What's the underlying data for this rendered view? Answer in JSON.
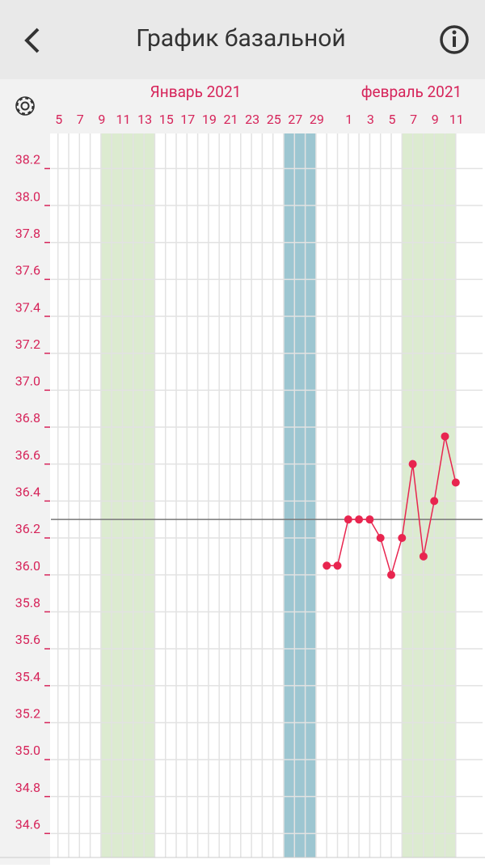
{
  "header": {
    "title": "График базальной"
  },
  "chart_data": {
    "type": "line",
    "months": [
      "Январь 2021",
      "февраль 2021"
    ],
    "categories": [
      "5",
      null,
      "7",
      null,
      "9",
      null,
      "11",
      null,
      "13",
      null,
      "15",
      null,
      "17",
      null,
      "19",
      null,
      "21",
      null,
      "23",
      null,
      "25",
      null,
      "27",
      null,
      "29",
      null,
      null,
      "1",
      null,
      "3",
      null,
      "5",
      null,
      "7",
      null,
      "9",
      null,
      "11"
    ],
    "series": [
      {
        "color": "#e8254f",
        "values": [
          null,
          null,
          null,
          null,
          null,
          null,
          null,
          null,
          null,
          null,
          null,
          null,
          null,
          null,
          null,
          null,
          null,
          null,
          null,
          null,
          null,
          null,
          null,
          null,
          null,
          36.05,
          36.05,
          36.3,
          36.3,
          36.3,
          36.2,
          36.0,
          36.2,
          36.6,
          36.1,
          36.4,
          36.75,
          36.5
        ]
      }
    ],
    "coverline": 36.3,
    "bands": [
      {
        "from": 4,
        "to": 8,
        "color": "#dcebd0"
      },
      {
        "from": 21,
        "to": 23,
        "color": "#9dc6d1"
      },
      {
        "from": 32,
        "to": 36,
        "color": "#dcebd0"
      }
    ],
    "ylim": [
      34.47,
      38.39
    ],
    "yticks": [
      38.2,
      {
        "value": 38,
        "label": "38.0"
      },
      37.8,
      37.6,
      37.4,
      37.2,
      {
        "value": 37,
        "label": "37.0"
      },
      36.8,
      36.6,
      36.4,
      36.2,
      {
        "value": 36,
        "label": "36.0"
      },
      35.8,
      35.6,
      35.4,
      35.2,
      {
        "value": 35,
        "label": "35.0"
      },
      34.8,
      34.6
    ],
    "grid": true
  }
}
